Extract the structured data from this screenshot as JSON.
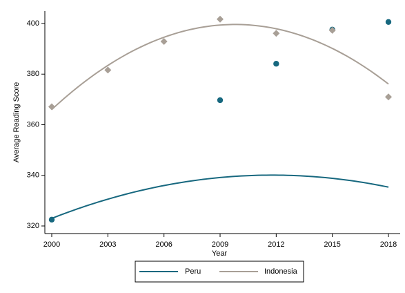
{
  "chart_data": {
    "type": "line",
    "title": "",
    "xlabel": "Year",
    "ylabel": "Average Reading Score",
    "x_ticks": [
      2000,
      2003,
      2006,
      2009,
      2012,
      2015,
      2018
    ],
    "y_ticks": [
      320,
      340,
      360,
      380,
      400
    ],
    "xlim": [
      2000,
      2018
    ],
    "ylim": [
      320,
      405
    ],
    "grid": false,
    "legend_position": "bottom",
    "series": [
      {
        "name": "Peru",
        "color": "#17687f",
        "marker": "circle",
        "points": [
          {
            "x": 2000,
            "y": 322.5
          },
          {
            "x": 2009,
            "y": 369.7
          },
          {
            "x": 2012,
            "y": 384.1
          },
          {
            "x": 2015,
            "y": 397.6
          },
          {
            "x": 2018,
            "y": 400.6
          }
        ],
        "fit": {
          "start": 2000,
          "end": 2018,
          "a": -0.123,
          "b": 2.9,
          "c": 323
        }
      },
      {
        "name": "Indonesia",
        "color": "#a89f96",
        "marker": "diamond",
        "points": [
          {
            "x": 2000,
            "y": 367.1
          },
          {
            "x": 2003,
            "y": 381.6
          },
          {
            "x": 2006,
            "y": 392.9
          },
          {
            "x": 2009,
            "y": 401.7
          },
          {
            "x": 2012,
            "y": 396.1
          },
          {
            "x": 2015,
            "y": 397.3
          },
          {
            "x": 2018,
            "y": 371.0
          }
        ],
        "fit": {
          "start": 2000,
          "end": 2018,
          "a": -0.35,
          "b": 6.86,
          "c": 366
        }
      }
    ]
  }
}
